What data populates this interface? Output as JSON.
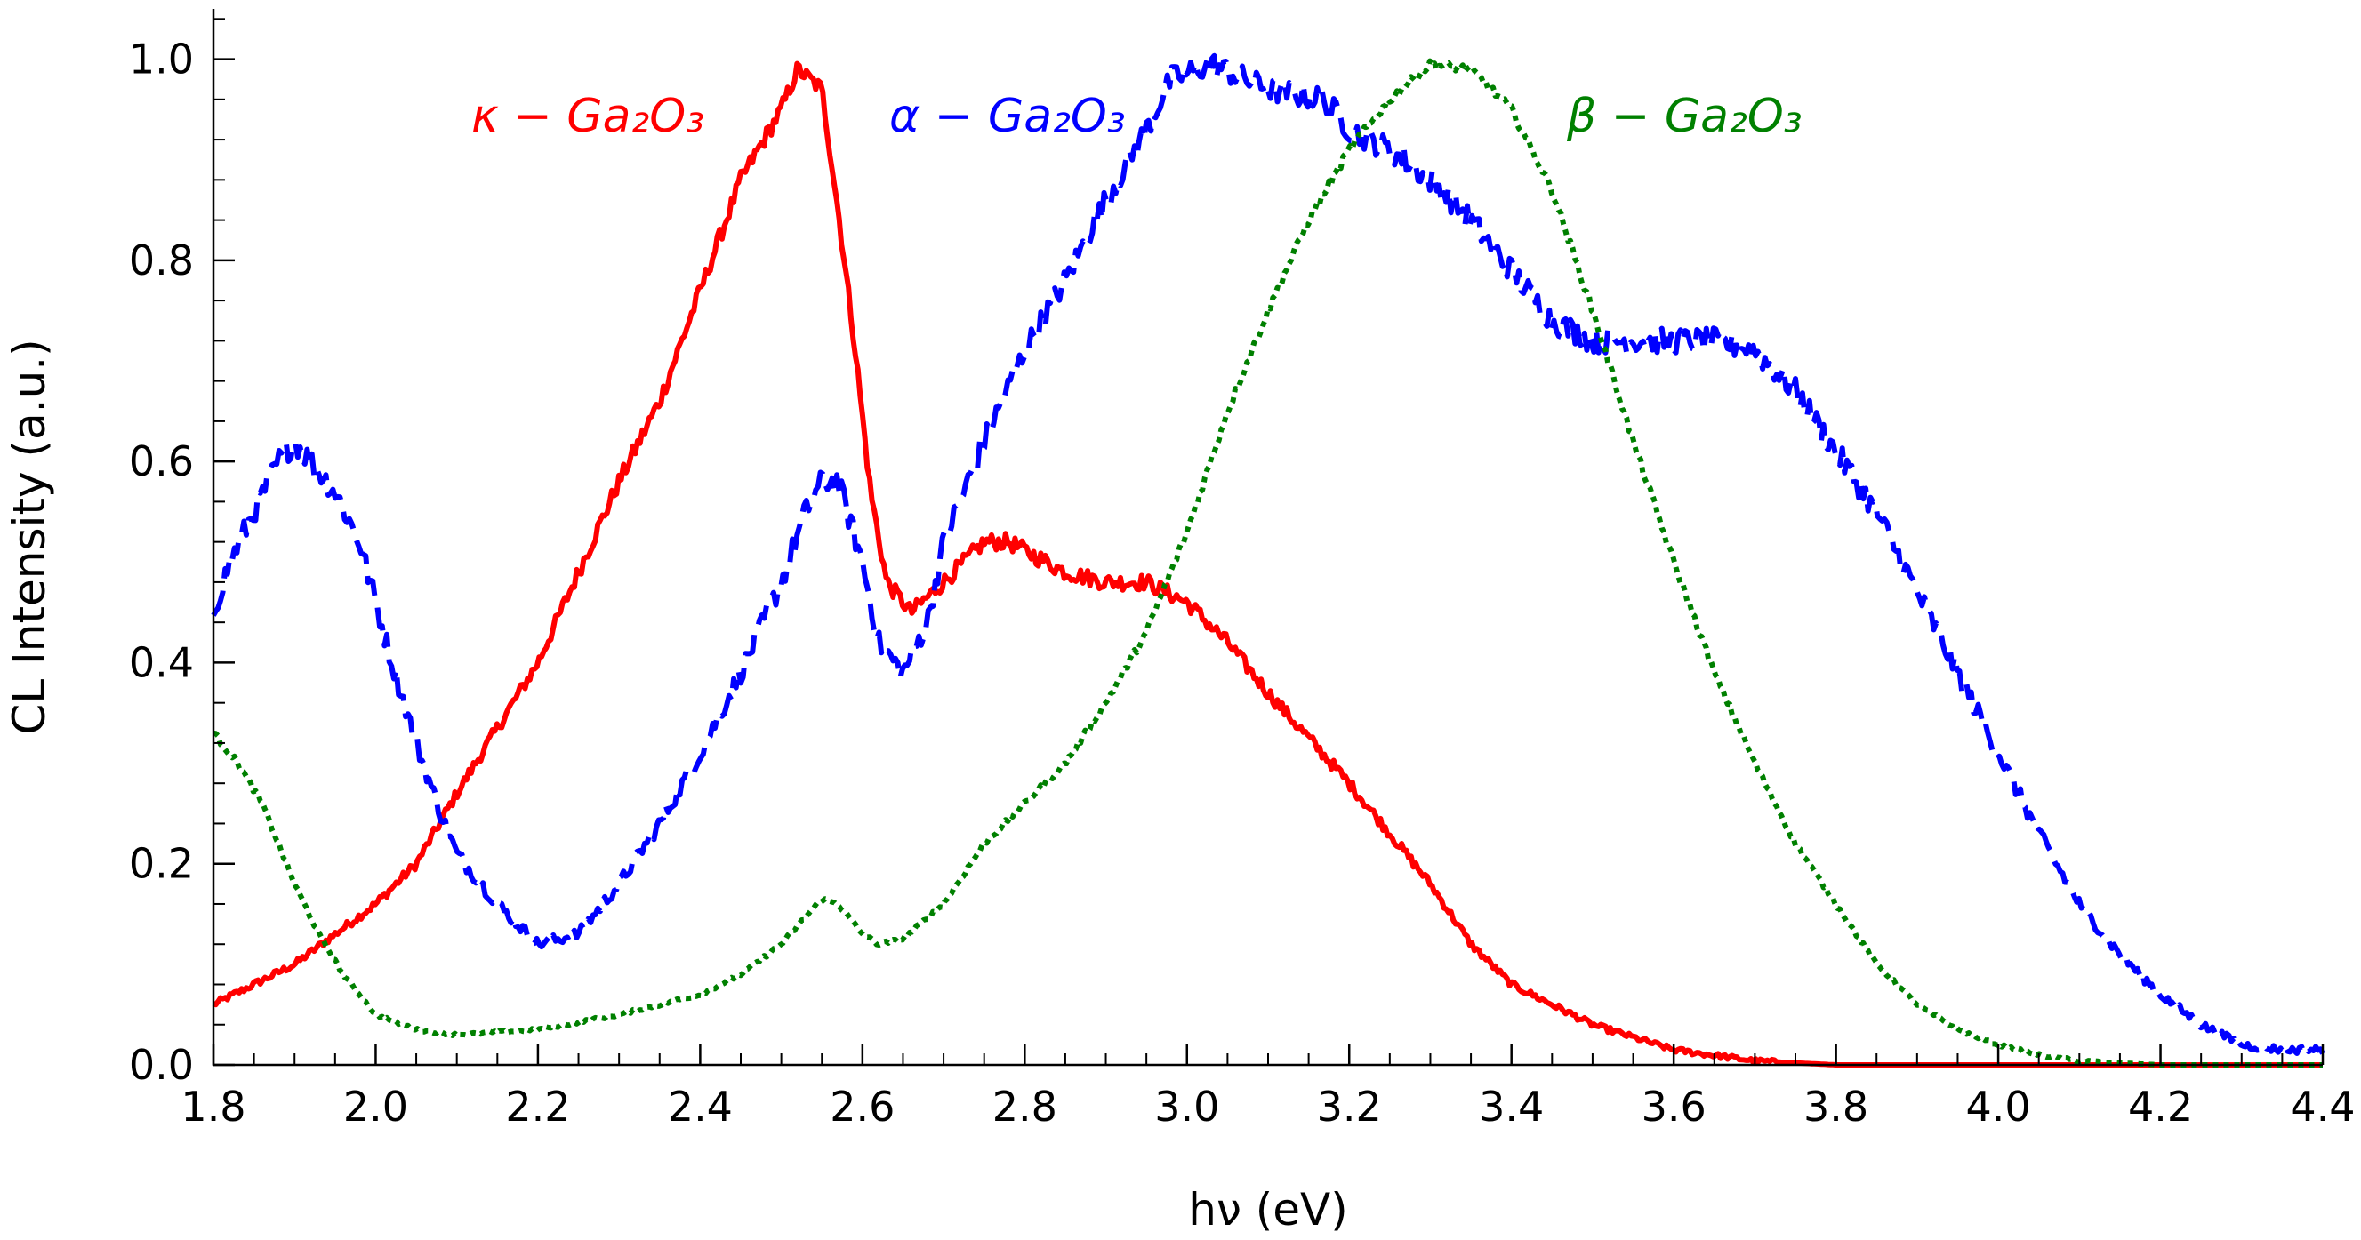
{
  "chart_data": {
    "type": "line",
    "xlabel": "hν (eV)",
    "ylabel": "CL Intensity (a.u.)",
    "xlim": [
      1.8,
      4.4
    ],
    "ylim": [
      0.0,
      1.05
    ],
    "x_ticks": [
      "1.8",
      "2.0",
      "2.2",
      "2.4",
      "2.6",
      "2.8",
      "3.0",
      "3.2",
      "3.4",
      "3.6",
      "3.8",
      "4.0",
      "4.2",
      "4.4"
    ],
    "y_ticks": [
      "0.0",
      "0.2",
      "0.4",
      "0.6",
      "0.8",
      "1.0"
    ],
    "grid": false,
    "series": [
      {
        "name": "κ − Ga₂O₃",
        "color": "#ff0000",
        "dash": "solid",
        "points": [
          [
            1.8,
            0.06
          ],
          [
            1.9,
            0.1
          ],
          [
            2.0,
            0.16
          ],
          [
            2.05,
            0.2
          ],
          [
            2.1,
            0.27
          ],
          [
            2.2,
            0.4
          ],
          [
            2.3,
            0.58
          ],
          [
            2.35,
            0.66
          ],
          [
            2.4,
            0.77
          ],
          [
            2.45,
            0.88
          ],
          [
            2.5,
            0.95
          ],
          [
            2.52,
            0.99
          ],
          [
            2.55,
            0.97
          ],
          [
            2.57,
            0.85
          ],
          [
            2.59,
            0.72
          ],
          [
            2.61,
            0.57
          ],
          [
            2.63,
            0.48
          ],
          [
            2.66,
            0.45
          ],
          [
            2.7,
            0.48
          ],
          [
            2.75,
            0.52
          ],
          [
            2.78,
            0.52
          ],
          [
            2.85,
            0.49
          ],
          [
            2.9,
            0.48
          ],
          [
            2.95,
            0.48
          ],
          [
            3.0,
            0.46
          ],
          [
            3.05,
            0.42
          ],
          [
            3.1,
            0.37
          ],
          [
            3.2,
            0.28
          ],
          [
            3.3,
            0.18
          ],
          [
            3.35,
            0.12
          ],
          [
            3.4,
            0.08
          ],
          [
            3.45,
            0.06
          ],
          [
            3.5,
            0.04
          ],
          [
            3.6,
            0.015
          ],
          [
            3.7,
            0.004
          ],
          [
            3.8,
            0.0
          ],
          [
            4.0,
            0.0
          ],
          [
            4.2,
            0.0
          ],
          [
            4.4,
            0.0
          ]
        ]
      },
      {
        "name": "α − Ga₂O₃",
        "color": "#0000ff",
        "dash": "dashed",
        "points": [
          [
            1.8,
            0.45
          ],
          [
            1.82,
            0.5
          ],
          [
            1.85,
            0.55
          ],
          [
            1.88,
            0.6
          ],
          [
            1.9,
            0.62
          ],
          [
            1.92,
            0.6
          ],
          [
            1.95,
            0.57
          ],
          [
            1.98,
            0.52
          ],
          [
            2.0,
            0.46
          ],
          [
            2.02,
            0.4
          ],
          [
            2.05,
            0.32
          ],
          [
            2.08,
            0.25
          ],
          [
            2.1,
            0.21
          ],
          [
            2.15,
            0.16
          ],
          [
            2.2,
            0.12
          ],
          [
            2.25,
            0.13
          ],
          [
            2.3,
            0.18
          ],
          [
            2.35,
            0.24
          ],
          [
            2.4,
            0.31
          ],
          [
            2.45,
            0.39
          ],
          [
            2.5,
            0.48
          ],
          [
            2.53,
            0.55
          ],
          [
            2.55,
            0.58
          ],
          [
            2.57,
            0.58
          ],
          [
            2.6,
            0.5
          ],
          [
            2.62,
            0.42
          ],
          [
            2.65,
            0.39
          ],
          [
            2.68,
            0.44
          ],
          [
            2.7,
            0.52
          ],
          [
            2.75,
            0.62
          ],
          [
            2.8,
            0.71
          ],
          [
            2.85,
            0.78
          ],
          [
            2.9,
            0.86
          ],
          [
            2.95,
            0.93
          ],
          [
            2.98,
            0.98
          ],
          [
            3.03,
            0.995
          ],
          [
            3.1,
            0.97
          ],
          [
            3.17,
            0.96
          ],
          [
            3.2,
            0.93
          ],
          [
            3.25,
            0.91
          ],
          [
            3.3,
            0.88
          ],
          [
            3.35,
            0.84
          ],
          [
            3.4,
            0.79
          ],
          [
            3.45,
            0.74
          ],
          [
            3.5,
            0.72
          ],
          [
            3.55,
            0.72
          ],
          [
            3.6,
            0.72
          ],
          [
            3.65,
            0.72
          ],
          [
            3.7,
            0.71
          ],
          [
            3.75,
            0.67
          ],
          [
            3.8,
            0.61
          ],
          [
            3.85,
            0.55
          ],
          [
            3.9,
            0.47
          ],
          [
            3.95,
            0.39
          ],
          [
            4.0,
            0.31
          ],
          [
            4.05,
            0.23
          ],
          [
            4.1,
            0.16
          ],
          [
            4.15,
            0.11
          ],
          [
            4.2,
            0.07
          ],
          [
            4.25,
            0.04
          ],
          [
            4.3,
            0.02
          ],
          [
            4.35,
            0.015
          ],
          [
            4.4,
            0.015
          ]
        ]
      },
      {
        "name": "β − Ga₂O₃",
        "color": "#008000",
        "dash": "dotted",
        "points": [
          [
            1.8,
            0.33
          ],
          [
            1.83,
            0.3
          ],
          [
            1.86,
            0.26
          ],
          [
            1.88,
            0.22
          ],
          [
            1.9,
            0.18
          ],
          [
            1.93,
            0.13
          ],
          [
            1.96,
            0.09
          ],
          [
            2.0,
            0.05
          ],
          [
            2.05,
            0.035
          ],
          [
            2.1,
            0.03
          ],
          [
            2.2,
            0.035
          ],
          [
            2.3,
            0.05
          ],
          [
            2.4,
            0.07
          ],
          [
            2.45,
            0.09
          ],
          [
            2.5,
            0.12
          ],
          [
            2.55,
            0.165
          ],
          [
            2.57,
            0.16
          ],
          [
            2.6,
            0.13
          ],
          [
            2.62,
            0.12
          ],
          [
            2.65,
            0.125
          ],
          [
            2.7,
            0.16
          ],
          [
            2.75,
            0.22
          ],
          [
            2.8,
            0.26
          ],
          [
            2.85,
            0.3
          ],
          [
            2.9,
            0.36
          ],
          [
            2.95,
            0.43
          ],
          [
            3.0,
            0.53
          ],
          [
            3.05,
            0.65
          ],
          [
            3.1,
            0.75
          ],
          [
            3.15,
            0.84
          ],
          [
            3.2,
            0.91
          ],
          [
            3.25,
            0.96
          ],
          [
            3.3,
            0.995
          ],
          [
            3.35,
            0.99
          ],
          [
            3.4,
            0.95
          ],
          [
            3.45,
            0.87
          ],
          [
            3.5,
            0.75
          ],
          [
            3.55,
            0.62
          ],
          [
            3.6,
            0.5
          ],
          [
            3.65,
            0.39
          ],
          [
            3.7,
            0.3
          ],
          [
            3.75,
            0.22
          ],
          [
            3.8,
            0.16
          ],
          [
            3.85,
            0.1
          ],
          [
            3.9,
            0.06
          ],
          [
            3.95,
            0.035
          ],
          [
            4.0,
            0.02
          ],
          [
            4.05,
            0.01
          ],
          [
            4.1,
            0.004
          ],
          [
            4.2,
            0.0
          ],
          [
            4.3,
            0.0
          ],
          [
            4.4,
            0.0
          ]
        ]
      }
    ]
  }
}
